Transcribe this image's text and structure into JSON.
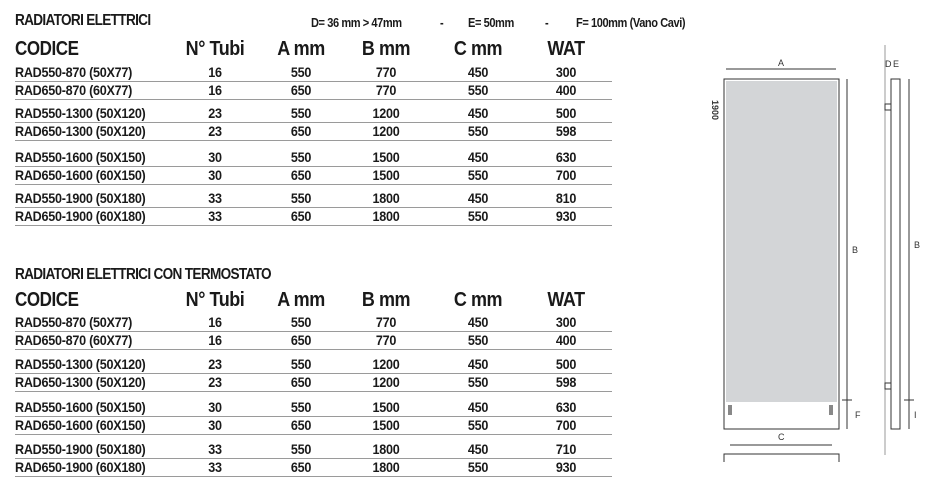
{
  "notes": {
    "d": "D= 36 mm > 47mm",
    "sep": "-",
    "e": "E= 50mm",
    "f": "F= 100mm (Vano Cavi)"
  },
  "columns": [
    "CODICE",
    "N° Tubi",
    "A mm",
    "B mm",
    "C mm",
    "WAT"
  ],
  "tables": [
    {
      "title": "RADIATORI ELETTRICI",
      "rows": [
        [
          "RAD550-870 (50X77)",
          "16",
          "550",
          "770",
          "450",
          "300"
        ],
        [
          "RAD650-870 (60X77)",
          "16",
          "650",
          "770",
          "550",
          "400"
        ],
        [
          "RAD550-1300 (50X120)",
          "23",
          "550",
          "1200",
          "450",
          "500"
        ],
        [
          "RAD650-1300 (50X120)",
          "23",
          "650",
          "1200",
          "550",
          "598"
        ],
        [
          "RAD550-1600 (50X150)",
          "30",
          "550",
          "1500",
          "450",
          "630"
        ],
        [
          "RAD650-1600 (60X150)",
          "30",
          "650",
          "1500",
          "550",
          "700"
        ],
        [
          "RAD550-1900 (50X180)",
          "33",
          "550",
          "1800",
          "450",
          "810"
        ],
        [
          "RAD650-1900 (60X180)",
          "33",
          "650",
          "1800",
          "550",
          "930"
        ]
      ]
    },
    {
      "title": "RADIATORI ELETTRICI CON TERMOSTATO",
      "rows": [
        [
          "RAD550-870 (50X77)",
          "16",
          "550",
          "770",
          "450",
          "300"
        ],
        [
          "RAD650-870 (60X77)",
          "16",
          "650",
          "770",
          "550",
          "400"
        ],
        [
          "RAD550-1300 (50X120)",
          "23",
          "550",
          "1200",
          "450",
          "500"
        ],
        [
          "RAD650-1300 (50X120)",
          "23",
          "650",
          "1200",
          "550",
          "598"
        ],
        [
          "RAD550-1600 (50X150)",
          "30",
          "550",
          "1500",
          "450",
          "630"
        ],
        [
          "RAD650-1600 (60X150)",
          "30",
          "650",
          "1500",
          "550",
          "700"
        ],
        [
          "RAD550-1900 (50X180)",
          "33",
          "550",
          "1800",
          "450",
          "710"
        ],
        [
          "RAD650-1900 (60X180)",
          "33",
          "650",
          "1800",
          "550",
          "930"
        ]
      ]
    }
  ],
  "diagram": {
    "height_label": "1900",
    "labels": {
      "a": "A",
      "b": "B",
      "c": "C",
      "d": "D",
      "e": "E",
      "b_side": "B",
      "f": "F",
      "i": "I"
    },
    "panel_color": "#d3d5d7"
  }
}
